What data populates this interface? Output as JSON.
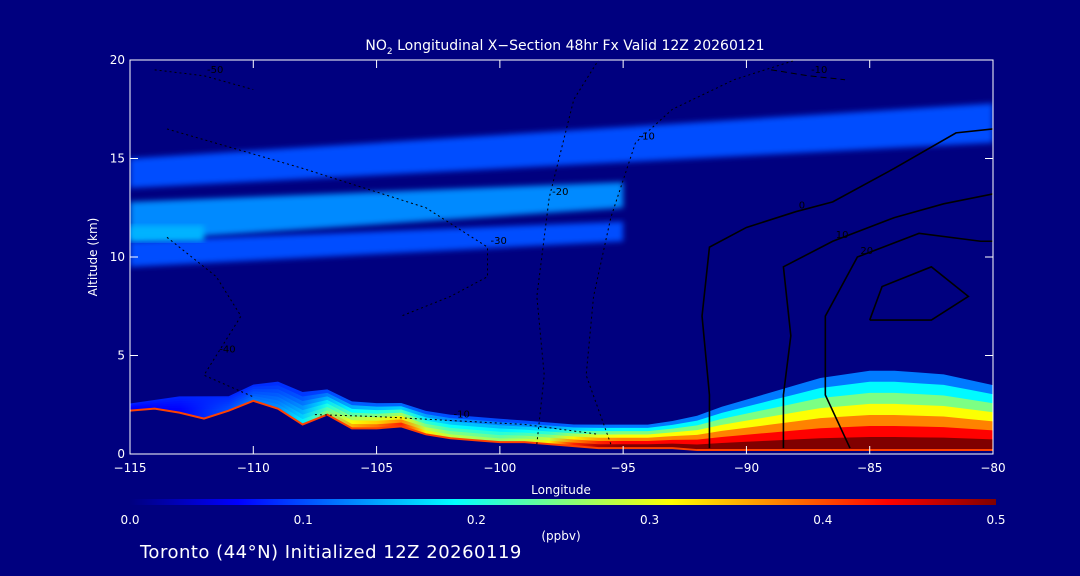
{
  "footer": "Toronto (44°N) Initialized 12Z 20260119",
  "chart_data": {
    "type": "heatmap",
    "title_prefix": "NO",
    "title_sub": "2",
    "title_rest": " Longitudinal X−Section 48hr  Fx Valid 12Z 20260121",
    "xlabel": "Longitude",
    "ylabel": "Altitude (km)",
    "xlim": [
      -115,
      -80
    ],
    "ylim": [
      0,
      20
    ],
    "x_ticks": [
      -115,
      -110,
      -105,
      -100,
      -95,
      -90,
      -85,
      -80
    ],
    "x_tick_labels": [
      "−115",
      "−110",
      "−105",
      "−100",
      "−95",
      "−90",
      "−85",
      "−80"
    ],
    "y_ticks": [
      0,
      5,
      10,
      15,
      20
    ],
    "y_tick_labels": [
      "0",
      "5",
      "10",
      "15",
      "20"
    ],
    "colorbar": {
      "label": "(ppbv)",
      "range": [
        0.0,
        0.5
      ],
      "ticks": [
        0.0,
        0.1,
        0.2,
        0.3,
        0.4,
        0.5
      ],
      "tick_labels": [
        "0.0",
        "0.1",
        "0.2",
        "0.3",
        "0.4",
        "0.5"
      ],
      "colors": [
        "#00007f",
        "#0000ff",
        "#0080ff",
        "#00ffff",
        "#80ff80",
        "#ffff00",
        "#ff8000",
        "#ff0000",
        "#800000"
      ]
    },
    "terrain_profile": [
      {
        "x": -115,
        "y": 2.2
      },
      {
        "x": -114,
        "y": 2.3
      },
      {
        "x": -113,
        "y": 2.1
      },
      {
        "x": -112,
        "y": 1.8
      },
      {
        "x": -111,
        "y": 2.2
      },
      {
        "x": -110,
        "y": 2.7
      },
      {
        "x": -109,
        "y": 2.3
      },
      {
        "x": -108,
        "y": 1.5
      },
      {
        "x": -107,
        "y": 2.0
      },
      {
        "x": -106,
        "y": 1.3
      },
      {
        "x": -105,
        "y": 1.3
      },
      {
        "x": -104,
        "y": 1.4
      },
      {
        "x": -103,
        "y": 1.0
      },
      {
        "x": -102,
        "y": 0.8
      },
      {
        "x": -101,
        "y": 0.7
      },
      {
        "x": -100,
        "y": 0.6
      },
      {
        "x": -99,
        "y": 0.6
      },
      {
        "x": -98,
        "y": 0.5
      },
      {
        "x": -97,
        "y": 0.4
      },
      {
        "x": -96,
        "y": 0.3
      },
      {
        "x": -95,
        "y": 0.3
      },
      {
        "x": -94,
        "y": 0.3
      },
      {
        "x": -93,
        "y": 0.3
      },
      {
        "x": -92,
        "y": 0.2
      },
      {
        "x": -91,
        "y": 0.2
      },
      {
        "x": -90,
        "y": 0.2
      },
      {
        "x": -89,
        "y": 0.2
      },
      {
        "x": -88,
        "y": 0.2
      },
      {
        "x": -87,
        "y": 0.2
      },
      {
        "x": -86,
        "y": 0.2
      },
      {
        "x": -85,
        "y": 0.2
      },
      {
        "x": -84,
        "y": 0.2
      },
      {
        "x": -83,
        "y": 0.2
      },
      {
        "x": -82,
        "y": 0.2
      },
      {
        "x": -81,
        "y": 0.2
      },
      {
        "x": -80,
        "y": 0.2
      }
    ],
    "field_bands": [
      {
        "value": 0.1,
        "x": [
          -115,
          -80
        ],
        "ybot": [
          13.5,
          15.8
        ],
        "ytop": [
          15.0,
          17.8
        ]
      },
      {
        "value": 0.13,
        "x": [
          -115,
          -95
        ],
        "ybot": [
          10.8,
          12.5
        ],
        "ytop": [
          12.8,
          13.8
        ]
      },
      {
        "value": 0.1,
        "x": [
          -115,
          -95
        ],
        "ybot": [
          9.5,
          10.8
        ],
        "ytop": [
          10.8,
          11.8
        ]
      },
      {
        "value": 0.15,
        "x": [
          -115,
          -112
        ],
        "ybot": [
          10.8,
          10.8
        ],
        "ytop": [
          11.6,
          11.6
        ]
      }
    ],
    "boundary_layer": [
      {
        "x": -115,
        "top": 2.6,
        "peak": 0.05
      },
      {
        "x": -113,
        "top": 3.0,
        "peak": 0.06
      },
      {
        "x": -111,
        "top": 3.0,
        "peak": 0.1
      },
      {
        "x": -110,
        "top": 3.6,
        "peak": 0.12
      },
      {
        "x": -109,
        "top": 3.8,
        "peak": 0.13
      },
      {
        "x": -108,
        "top": 3.3,
        "peak": 0.18
      },
      {
        "x": -107,
        "top": 3.4,
        "peak": 0.25
      },
      {
        "x": -106,
        "top": 2.8,
        "peak": 0.35
      },
      {
        "x": -105,
        "top": 2.7,
        "peak": 0.38
      },
      {
        "x": -104,
        "top": 2.7,
        "peak": 0.42
      },
      {
        "x": -103,
        "top": 2.3,
        "peak": 0.32
      },
      {
        "x": -102,
        "top": 2.1,
        "peak": 0.28
      },
      {
        "x": -101,
        "top": 2.0,
        "peak": 0.27
      },
      {
        "x": -100,
        "top": 1.9,
        "peak": 0.26
      },
      {
        "x": -99,
        "top": 1.8,
        "peak": 0.28
      },
      {
        "x": -98,
        "top": 1.7,
        "peak": 0.32
      },
      {
        "x": -97,
        "top": 1.6,
        "peak": 0.42
      },
      {
        "x": -96,
        "top": 1.6,
        "peak": 0.48
      },
      {
        "x": -95,
        "top": 1.6,
        "peak": 0.5
      },
      {
        "x": -94,
        "top": 1.6,
        "peak": 0.5
      },
      {
        "x": -93,
        "top": 1.8,
        "peak": 0.5
      },
      {
        "x": -92,
        "top": 2.1,
        "peak": 0.5
      },
      {
        "x": -91,
        "top": 2.6,
        "peak": 0.5
      },
      {
        "x": -90,
        "top": 3.0,
        "peak": 0.5
      },
      {
        "x": -89,
        "top": 3.4,
        "peak": 0.5
      },
      {
        "x": -88,
        "top": 3.8,
        "peak": 0.5
      },
      {
        "x": -87,
        "top": 4.2,
        "peak": 0.5
      },
      {
        "x": -86,
        "top": 4.4,
        "peak": 0.5
      },
      {
        "x": -85,
        "top": 4.6,
        "peak": 0.5
      },
      {
        "x": -84,
        "top": 4.6,
        "peak": 0.5
      },
      {
        "x": -83,
        "top": 4.5,
        "peak": 0.5
      },
      {
        "x": -82,
        "top": 4.4,
        "peak": 0.5
      },
      {
        "x": -81,
        "top": 4.1,
        "peak": 0.5
      },
      {
        "x": -80,
        "top": 3.8,
        "peak": 0.5
      }
    ],
    "contours": [
      {
        "label": "0",
        "style": "solid",
        "points": [
          [
            -91.5,
            0.3
          ],
          [
            -91.5,
            3
          ],
          [
            -91.8,
            7
          ],
          [
            -91.5,
            10.5
          ],
          [
            -90,
            11.5
          ],
          [
            -88,
            12.3
          ],
          [
            -86.5,
            12.8
          ],
          [
            -84,
            14.5
          ],
          [
            -81.5,
            16.3
          ],
          [
            -80,
            16.5
          ]
        ]
      },
      {
        "label": "10",
        "style": "solid",
        "points": [
          [
            -88.5,
            0.3
          ],
          [
            -88.5,
            3
          ],
          [
            -88.2,
            6
          ],
          [
            -88.5,
            9.5
          ],
          [
            -86.5,
            10.8
          ],
          [
            -84,
            12
          ],
          [
            -82,
            12.7
          ],
          [
            -80,
            13.2
          ]
        ]
      },
      {
        "label": "20",
        "style": "solid",
        "points": [
          [
            -85.8,
            0.3
          ],
          [
            -86.8,
            3
          ],
          [
            -86.8,
            7
          ],
          [
            -85.5,
            10
          ],
          [
            -83,
            11.2
          ],
          [
            -80.5,
            10.8
          ],
          [
            -80,
            10.8
          ]
        ]
      },
      {
        "label": "",
        "style": "solid",
        "points": [
          [
            -85,
            6.8
          ],
          [
            -84.5,
            8.5
          ],
          [
            -82.5,
            9.5
          ],
          [
            -81,
            8
          ],
          [
            -82.5,
            6.8
          ],
          [
            -85,
            6.8
          ]
        ]
      },
      {
        "label": "-10",
        "style": "dotted",
        "points": [
          [
            -95.5,
            0.5
          ],
          [
            -96.5,
            4
          ],
          [
            -96.2,
            8
          ],
          [
            -95.5,
            12
          ],
          [
            -94.5,
            15.8
          ],
          [
            -93,
            17.5
          ],
          [
            -90.5,
            19
          ],
          [
            -88,
            20
          ]
        ]
      },
      {
        "label": "-20",
        "style": "dotted",
        "points": [
          [
            -98.5,
            0.5
          ],
          [
            -98.2,
            4
          ],
          [
            -98.5,
            8
          ],
          [
            -98,
            13
          ],
          [
            -97,
            18
          ],
          [
            -96,
            20
          ]
        ]
      },
      {
        "label": "-30",
        "style": "dotted",
        "points": [
          [
            -113.5,
            16.5
          ],
          [
            -108,
            14.5
          ],
          [
            -103,
            12.5
          ],
          [
            -100.5,
            10.5
          ],
          [
            -100.5,
            9
          ],
          [
            -102,
            8
          ],
          [
            -104,
            7
          ]
        ]
      },
      {
        "label": "-40",
        "style": "dotted",
        "points": [
          [
            -113.5,
            11
          ],
          [
            -111.5,
            9
          ],
          [
            -110.5,
            7
          ],
          [
            -111.5,
            5
          ],
          [
            -112,
            4
          ],
          [
            -110,
            2.9
          ]
        ]
      },
      {
        "label": "-50",
        "style": "dotted",
        "points": [
          [
            -114,
            19.5
          ],
          [
            -112,
            19.2
          ],
          [
            -110,
            18.5
          ]
        ]
      },
      {
        "label": "-10",
        "style": "dashed",
        "points": [
          [
            -89,
            19.5
          ],
          [
            -87.5,
            19.2
          ],
          [
            -86,
            19
          ]
        ]
      },
      {
        "label": "-10",
        "style": "dotted",
        "points": [
          [
            -107.5,
            2
          ],
          [
            -105,
            1.9
          ],
          [
            -102,
            1.7
          ],
          [
            -99,
            1.5
          ],
          [
            -96,
            1.0
          ]
        ]
      }
    ]
  }
}
